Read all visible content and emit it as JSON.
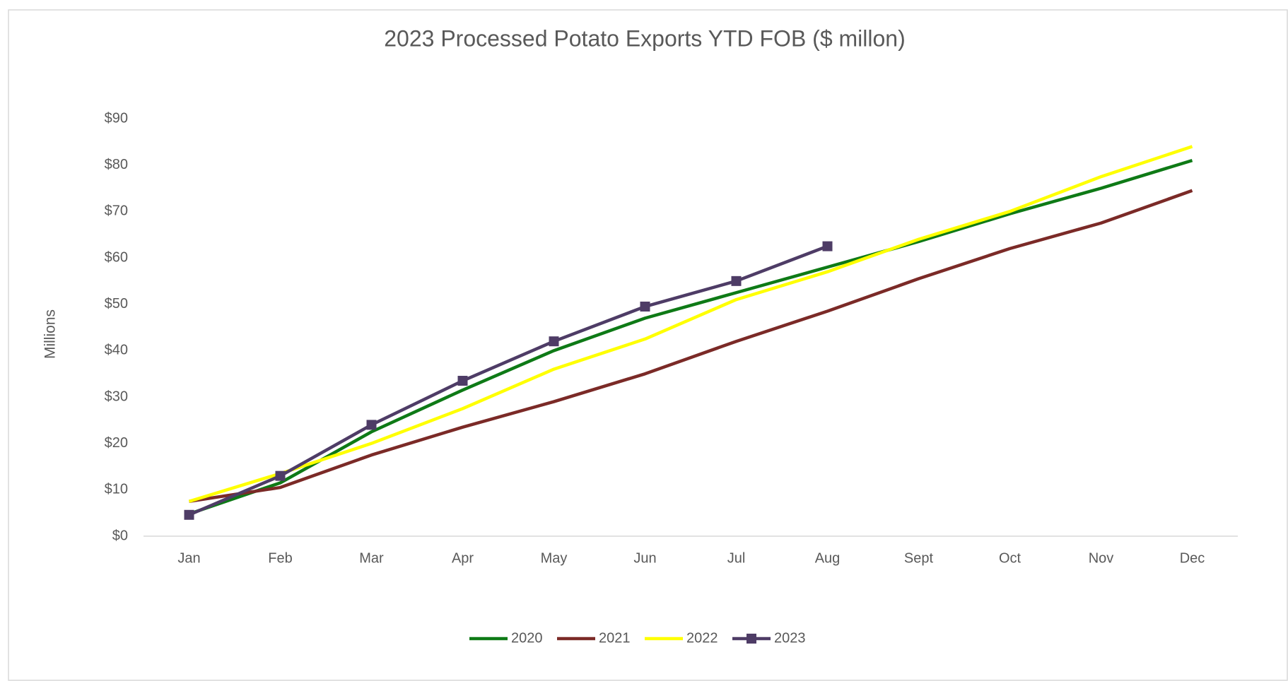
{
  "chart_data": {
    "type": "line",
    "title": "2023 Processed Potato Exports YTD FOB ($ millon)",
    "y_label": "Millions",
    "categories": [
      "Jan",
      "Feb",
      "Mar",
      "Apr",
      "May",
      "Jun",
      "Jul",
      "Aug",
      "Sept",
      "Oct",
      "Nov",
      "Dec"
    ],
    "series": [
      {
        "name": "2020",
        "color": "#0e7a16",
        "values": [
          4.8,
          11.5,
          22.5,
          31.5,
          40,
          47,
          52.5,
          58,
          63.5,
          69.5,
          75,
          81
        ]
      },
      {
        "name": "2021",
        "color": "#7b2a27",
        "values": [
          7.5,
          10.5,
          17.5,
          23.5,
          29,
          35,
          42,
          48.5,
          55.5,
          62,
          67.5,
          74.5
        ]
      },
      {
        "name": "2022",
        "color": "#ffff00",
        "values": [
          7.5,
          13.5,
          20,
          27.5,
          36,
          42.5,
          51,
          57,
          64,
          70,
          77.5,
          84
        ]
      },
      {
        "name": "2023",
        "color": "#4e3c66",
        "marker": "square",
        "values": [
          4.6,
          13,
          24,
          33.5,
          42,
          49.5,
          55,
          62.5,
          null,
          null,
          null,
          null
        ]
      }
    ],
    "ylim": [
      0,
      90
    ],
    "yticks": [
      {
        "value": 0,
        "label": "$0"
      },
      {
        "value": 10,
        "label": "$10"
      },
      {
        "value": 20,
        "label": "$20"
      },
      {
        "value": 30,
        "label": "$30"
      },
      {
        "value": 40,
        "label": "$40"
      },
      {
        "value": 50,
        "label": "$50"
      },
      {
        "value": 60,
        "label": "$60"
      },
      {
        "value": 70,
        "label": "$70"
      },
      {
        "value": 80,
        "label": "$80"
      },
      {
        "value": 90,
        "label": "$90"
      }
    ],
    "grid": false,
    "legend": "bottom"
  }
}
